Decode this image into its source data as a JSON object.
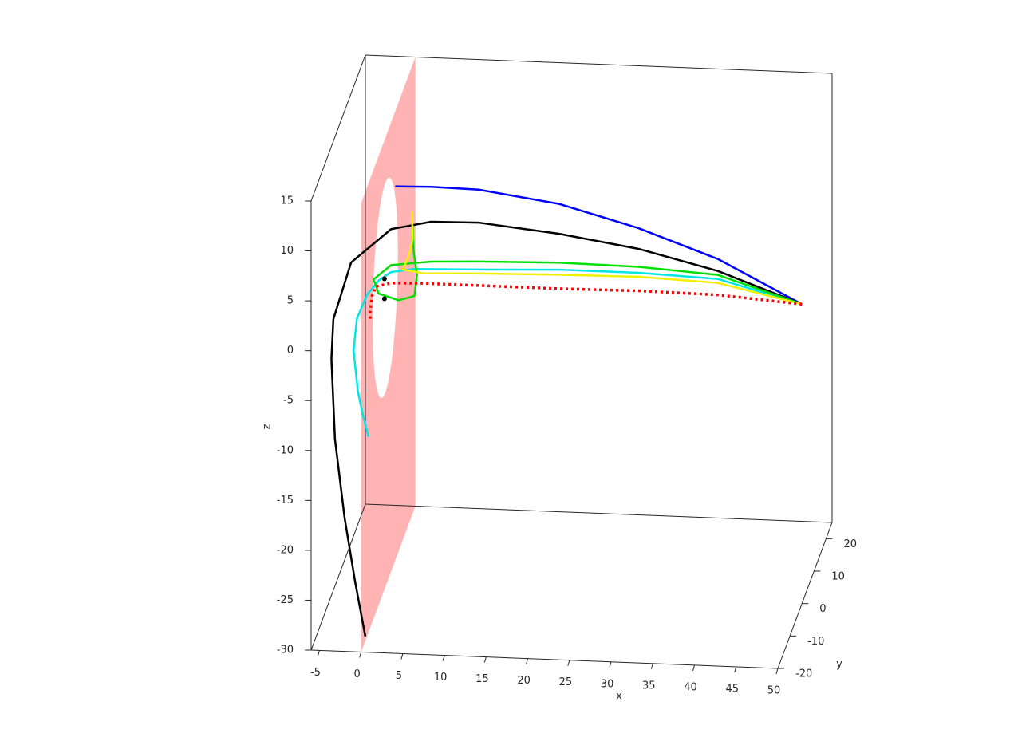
{
  "chart_data": {
    "type": "line3d",
    "xlabel": "x",
    "ylabel": "y",
    "zlabel": "z",
    "xlim": [
      -6,
      50
    ],
    "ylim": [
      -20,
      25
    ],
    "zlim": [
      -30,
      15
    ],
    "xticks": [
      -5,
      0,
      5,
      10,
      15,
      20,
      25,
      30,
      35,
      40,
      45,
      50
    ],
    "yticks": [
      -20,
      -10,
      0,
      10,
      20
    ],
    "zticks": [
      -30,
      -25,
      -20,
      -15,
      -10,
      -5,
      0,
      5,
      10,
      15
    ],
    "surface": {
      "x": 0,
      "hole_center": [
        0,
        0
      ],
      "hole_radius": 10.5,
      "color": "#ffb3b3"
    },
    "series": [
      {
        "color": "#0000ff",
        "style": "solid",
        "x": [
          50,
          39.9,
          30.3,
          20.8,
          11.2,
          5.5,
          1.2
        ],
        "y": [
          0,
          0,
          0,
          0,
          0,
          0,
          0
        ],
        "z": [
          0,
          4.2,
          7.0,
          9.1,
          10.2,
          10.3,
          10.2
        ]
      },
      {
        "color": "#000000",
        "style": "solid",
        "x": [
          50,
          39.9,
          30.4,
          20.8,
          11.2,
          5.5,
          0.7,
          -4.1,
          -5.5,
          -5.3,
          -4.3,
          -2.7,
          -1.0,
          0.5
        ],
        "y": [
          0,
          0,
          0,
          0,
          0,
          0,
          0,
          0,
          -5,
          -8,
          -12,
          -15,
          -18,
          -20
        ],
        "z": [
          0,
          3.0,
          4.9,
          6.1,
          6.9,
          6.8,
          5.9,
          2.4,
          -1.7,
          -4.7,
          -11.4,
          -18.3,
          -23.7,
          -28.4
        ]
      },
      {
        "color": "#00e5e5",
        "style": "solid",
        "x": [
          50,
          39.9,
          30.4,
          20.8,
          11.2,
          3.5,
          0.7,
          -0.8,
          -2.2,
          -3.4,
          -3.8,
          -3.3,
          -2.7,
          -2.0
        ],
        "y": [
          0,
          0,
          0,
          0,
          0,
          0,
          0,
          0,
          0,
          0,
          0,
          0,
          0,
          0
        ],
        "z": [
          0,
          2.2,
          2.5,
          2.5,
          2.2,
          2.0,
          1.6,
          0.7,
          -0.8,
          -3.2,
          -6.4,
          -10.4,
          -12.8,
          -15.0
        ]
      },
      {
        "color": "#00e000",
        "style": "solid",
        "x": [
          50,
          39.9,
          30.4,
          20.8,
          11.2,
          5.5,
          0.7,
          -1.4,
          -0.8,
          1.6,
          3.5,
          3.8,
          3.4,
          3.3
        ],
        "y": [
          0,
          0,
          0,
          0,
          0,
          0,
          0,
          0,
          0,
          0,
          0,
          0,
          0,
          0
        ],
        "z": [
          0,
          2.6,
          3.1,
          3.2,
          3.0,
          2.8,
          2.3,
          0.8,
          -0.6,
          -1.2,
          -0.7,
          1.4,
          3.8,
          6.2
        ]
      },
      {
        "color": "#f0f000",
        "style": "solid",
        "x": [
          50,
          39.9,
          30.4,
          20.8,
          11.2,
          4.5,
          2.1,
          2.8,
          3.3,
          3.2
        ],
        "y": [
          0,
          0,
          0,
          0,
          0,
          0,
          0,
          0,
          0,
          0
        ],
        "z": [
          0,
          1.8,
          2.1,
          2.0,
          1.8,
          1.6,
          1.9,
          3.2,
          5.0,
          7.8
        ]
      },
      {
        "color": "#ff0000",
        "style": "dotted",
        "x": [
          50,
          39.9,
          30.4,
          20.8,
          11.2,
          4.5,
          0.7,
          -1.1,
          -1.6,
          -1.8,
          -1.8
        ],
        "y": [
          0,
          0,
          0,
          0,
          0,
          0,
          0,
          0,
          0,
          0,
          0
        ],
        "z": [
          0,
          0.6,
          0.7,
          0.6,
          0.6,
          0.6,
          0.5,
          0.1,
          -0.9,
          -2.4,
          -3.4
        ]
      },
      {
        "color": "#000000",
        "style": "marker",
        "x": [
          -0.1,
          -0.1
        ],
        "y": [
          0,
          0
        ],
        "z": [
          0.9,
          -1.1
        ]
      }
    ]
  }
}
